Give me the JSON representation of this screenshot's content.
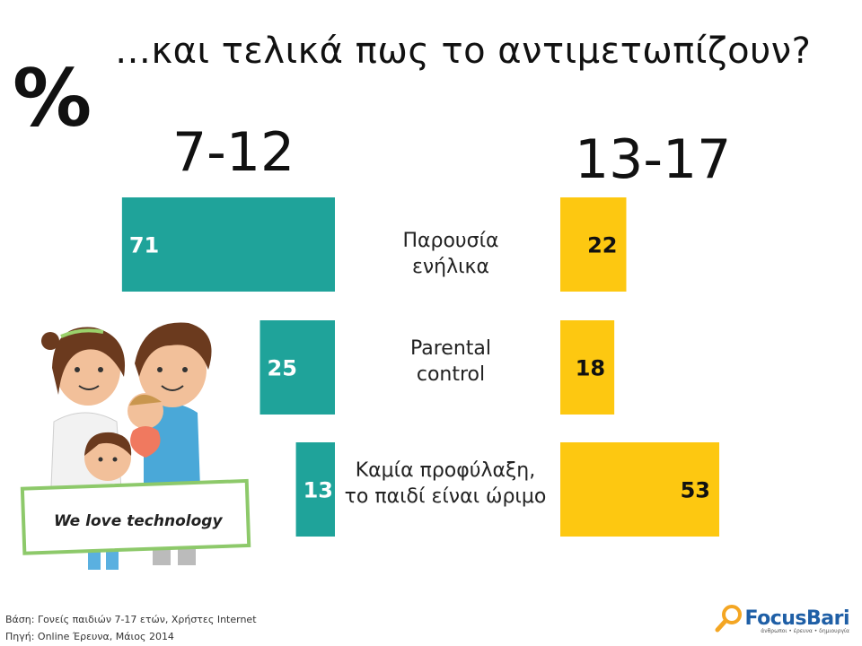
{
  "header": {
    "title": "…και τελικά πως το αντιμετωπίζουν?",
    "percent_symbol": "%"
  },
  "groups": {
    "left": "7-12",
    "right": "13-17"
  },
  "categories": [
    [
      "Παρουσία",
      "ενήλικα"
    ],
    [
      "Parental",
      "control"
    ],
    [
      "Καμία προφύλαξη,",
      "το παιδί είναι ώριμο"
    ]
  ],
  "illustration": {
    "sign_text": "We love technology"
  },
  "footer": {
    "base": "Βάση: Γονείς παιδιών 7-17 ετών, Χρήστες Internet",
    "source": "Πηγή: Online Έρευνα, Μάιος 2014"
  },
  "logo": {
    "name": "FocusBari",
    "tagline": "άνθρωποι • έρευνα • δημιουργία"
  },
  "colors": {
    "teal": "#1fa39a",
    "yellow": "#fdc811"
  },
  "chart_data": {
    "type": "bar",
    "orientation": "horizontal",
    "categories": [
      "Παρουσία ενήλικα",
      "Parental control",
      "Καμία προφύλαξη, το παιδί είναι ώριμο"
    ],
    "series": [
      {
        "name": "7-12",
        "values": [
          71,
          25,
          13
        ]
      },
      {
        "name": "13-17",
        "values": [
          22,
          18,
          53
        ]
      }
    ],
    "unit": "%"
  }
}
